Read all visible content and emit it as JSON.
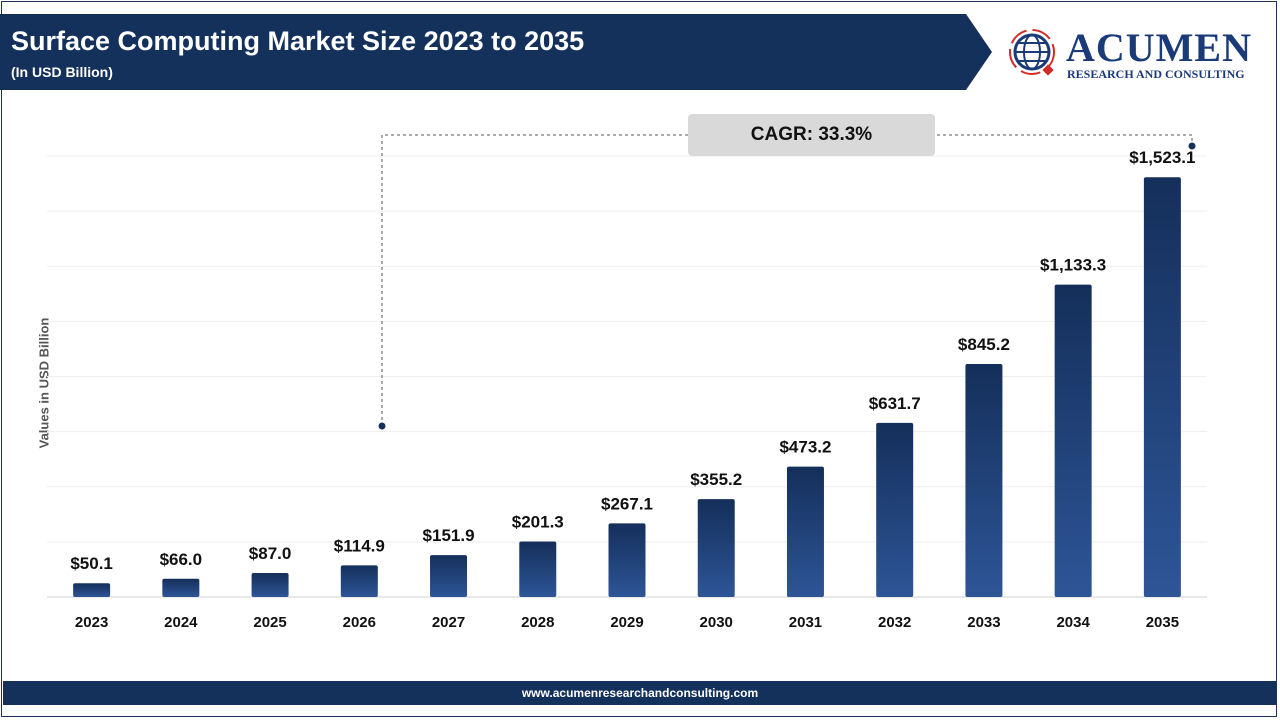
{
  "header": {
    "title": "Surface Computing Market Size 2023 to 2035",
    "subtitle": "(In USD Billion)"
  },
  "logo": {
    "name": "ACUMEN",
    "tagline": "RESEARCH AND CONSULTING"
  },
  "footer": {
    "url": "www.acumenresearchandconsulting.com"
  },
  "annotation": {
    "cagr": "CAGR: 33.3%"
  },
  "colors": {
    "bar_top": "#142f5a",
    "bar_bottom": "#2e5597",
    "header": "#14315c"
  },
  "chart_data": {
    "type": "bar",
    "title": "Surface Computing Market Size 2023 to 2035",
    "subtitle": "(In USD Billion)",
    "xlabel": "",
    "ylabel": "Values in USD Billion",
    "ylim": [
      0,
      1600
    ],
    "grid": true,
    "categories": [
      "2023",
      "2024",
      "2025",
      "2026",
      "2027",
      "2028",
      "2029",
      "2030",
      "2031",
      "2032",
      "2033",
      "2034",
      "2035"
    ],
    "values": [
      50.1,
      66.0,
      87.0,
      114.9,
      151.9,
      201.3,
      267.1,
      355.2,
      473.2,
      631.7,
      845.2,
      1133.3,
      1523.1
    ],
    "labels": [
      "$50.1",
      "$66.0",
      "$87.0",
      "$114.9",
      "$151.9",
      "$201.3",
      "$267.1",
      "$355.2",
      "$473.2",
      "$631.7",
      "$845.2",
      "$1,133.3",
      "$1,523.1"
    ]
  }
}
